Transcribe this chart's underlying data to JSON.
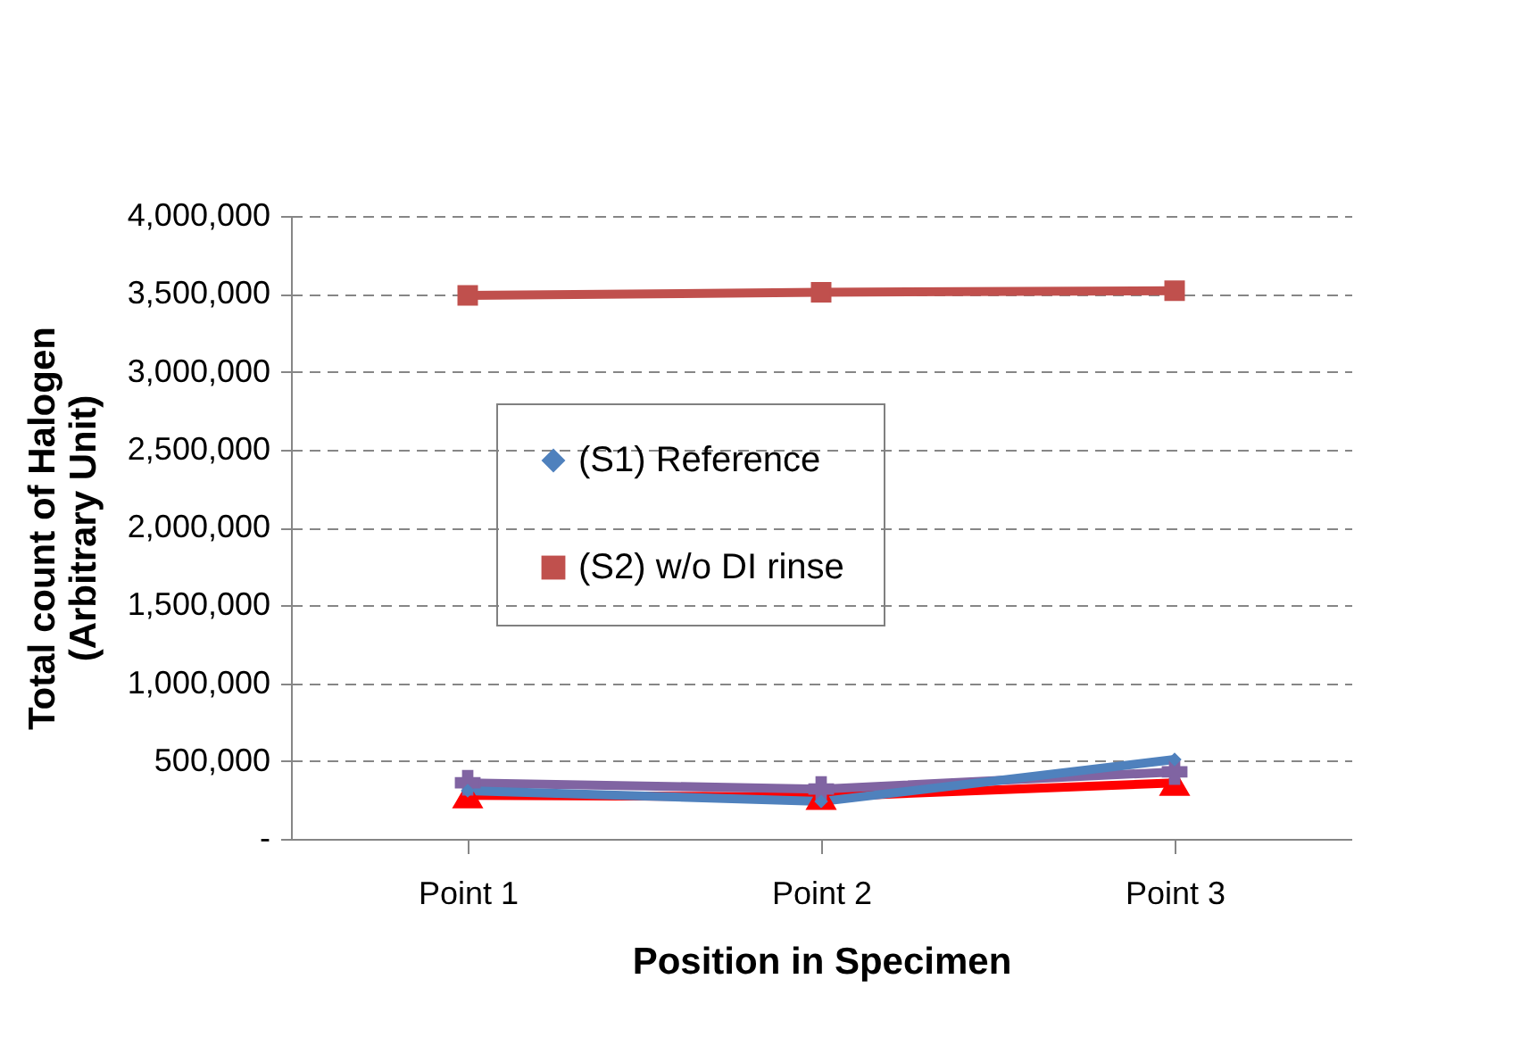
{
  "chart_data": {
    "type": "line",
    "xlabel": "Position in Specimen",
    "ylabel": "Total count of Halogen (Arbitrary Unit)",
    "categories": [
      "Point 1",
      "Point 2",
      "Point 3"
    ],
    "series": [
      {
        "name": "(S1) Reference",
        "color": "#4f81bd",
        "marker": "diamond",
        "values": [
          310000,
          240000,
          510000
        ]
      },
      {
        "name": "(S2) w/o DI rinse",
        "color": "#c0504d",
        "marker": "square",
        "values": [
          3490000,
          3510000,
          3520000
        ]
      },
      {
        "color": "#8064a2",
        "marker": "cross",
        "values": [
          360000,
          320000,
          430000
        ]
      },
      {
        "color": "#ff0000",
        "marker": "triangle",
        "values": [
          280000,
          270000,
          360000
        ]
      }
    ],
    "ylim": [
      0,
      4000000
    ],
    "yticks": [
      {
        "value": 0,
        "label": "-"
      },
      {
        "value": 500000,
        "label": "500,000"
      },
      {
        "value": 1000000,
        "label": "1,000,000"
      },
      {
        "value": 1500000,
        "label": "1,500,000"
      },
      {
        "value": 2000000,
        "label": "2,000,000"
      },
      {
        "value": 2500000,
        "label": "2,500,000"
      },
      {
        "value": 3000000,
        "label": "3,000,000"
      },
      {
        "value": 3500000,
        "label": "3,500,000"
      },
      {
        "value": 4000000,
        "label": "4,000,000"
      }
    ],
    "grid": "y",
    "legend": "center",
    "line_style": "solid"
  }
}
